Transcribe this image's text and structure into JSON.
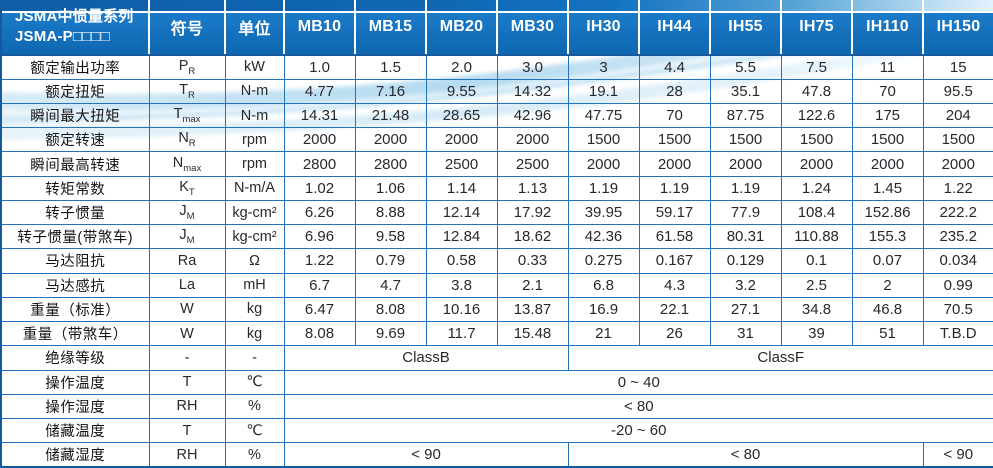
{
  "colors": {
    "header_blue": "#1270bf",
    "border_blue": "#2273b9",
    "wave_blue": "#6cb5e0"
  },
  "table": {
    "header": {
      "title_line1": "JSMA中惯量系列",
      "title_line2": "JSMA-P□□□□",
      "symbol_label": "符号",
      "unit_label": "单位",
      "models": [
        "MB10",
        "MB15",
        "MB20",
        "MB30",
        "IH30",
        "IH44",
        "IH55",
        "IH75",
        "IH110",
        "IH150"
      ]
    },
    "rows": [
      {
        "label": "额定输出功率",
        "symbol": "P",
        "sub": "R",
        "unit": "kW",
        "values": [
          "1.0",
          "1.5",
          "2.0",
          "3.0",
          "3",
          "4.4",
          "5.5",
          "7.5",
          "11",
          "15"
        ]
      },
      {
        "label": "额定扭矩",
        "symbol": "T",
        "sub": "R",
        "unit": "N-m",
        "values": [
          "4.77",
          "7.16",
          "9.55",
          "14.32",
          "19.1",
          "28",
          "35.1",
          "47.8",
          "70",
          "95.5"
        ]
      },
      {
        "label": "瞬间最大扭矩",
        "symbol": "T",
        "sub": "max",
        "unit": "N-m",
        "values": [
          "14.31",
          "21.48",
          "28.65",
          "42.96",
          "47.75",
          "70",
          "87.75",
          "122.6",
          "175",
          "204"
        ]
      },
      {
        "label": "额定转速",
        "symbol": "N",
        "sub": "R",
        "unit": "rpm",
        "values": [
          "2000",
          "2000",
          "2000",
          "2000",
          "1500",
          "1500",
          "1500",
          "1500",
          "1500",
          "1500"
        ]
      },
      {
        "label": "瞬间最高转速",
        "symbol": "N",
        "sub": "max",
        "unit": "rpm",
        "values": [
          "2800",
          "2800",
          "2500",
          "2500",
          "2000",
          "2000",
          "2000",
          "2000",
          "2000",
          "2000"
        ]
      },
      {
        "label": "转矩常数",
        "symbol": "K",
        "sub": "T",
        "unit": "N-m/A",
        "values": [
          "1.02",
          "1.06",
          "1.14",
          "1.13",
          "1.19",
          "1.19",
          "1.19",
          "1.24",
          "1.45",
          "1.22"
        ]
      },
      {
        "label": "转子惯量",
        "symbol": "J",
        "sub": "M",
        "unit": "kg-cm²",
        "values": [
          "6.26",
          "8.88",
          "12.14",
          "17.92",
          "39.95",
          "59.17",
          "77.9",
          "108.4",
          "152.86",
          "222.2"
        ]
      },
      {
        "label": "转子惯量(带煞车)",
        "symbol": "J",
        "sub": "M",
        "unit": "kg-cm²",
        "values": [
          "6.96",
          "9.58",
          "12.84",
          "18.62",
          "42.36",
          "61.58",
          "80.31",
          "110.88",
          "155.3",
          "235.2"
        ]
      },
      {
        "label": "马达阻抗",
        "symbol": "Ra",
        "unit": "Ω",
        "values": [
          "1.22",
          "0.79",
          "0.58",
          "0.33",
          "0.275",
          "0.167",
          "0.129",
          "0.1",
          "0.07",
          "0.034"
        ]
      },
      {
        "label": "马达感抗",
        "symbol": "La",
        "unit": "mH",
        "values": [
          "6.7",
          "4.7",
          "3.8",
          "2.1",
          "6.8",
          "4.3",
          "3.2",
          "2.5",
          "2",
          "0.99"
        ]
      },
      {
        "label": "重量（标准）",
        "symbol": "W",
        "unit": "kg",
        "values": [
          "6.47",
          "8.08",
          "10.16",
          "13.87",
          "16.9",
          "22.1",
          "27.1",
          "34.8",
          "46.8",
          "70.5"
        ]
      },
      {
        "label": "重量（带煞车）",
        "symbol": "W",
        "unit": "kg",
        "values": [
          "8.08",
          "9.69",
          "11.7",
          "15.48",
          "21",
          "26",
          "31",
          "39",
          "51",
          "T.B.D"
        ]
      },
      {
        "label": "绝缘等级",
        "symbol": "-",
        "unit": "-",
        "spans": [
          {
            "text": "ClassB",
            "cols": 4
          },
          {
            "text": "ClassF",
            "cols": 6
          }
        ]
      },
      {
        "label": "操作温度",
        "symbol": "T",
        "unit": "℃",
        "spans": [
          {
            "text": "0 ~ 40",
            "cols": 10
          }
        ]
      },
      {
        "label": "操作湿度",
        "symbol": "RH",
        "unit": "%",
        "spans": [
          {
            "text": "< 80",
            "cols": 10
          }
        ]
      },
      {
        "label": "储藏温度",
        "symbol": "T",
        "unit": "℃",
        "spans": [
          {
            "text": "-20 ~ 60",
            "cols": 10
          }
        ]
      },
      {
        "label": "储藏湿度",
        "symbol": "RH",
        "unit": "%",
        "spans": [
          {
            "text": "< 90",
            "cols": 4
          },
          {
            "text": "< 80",
            "cols": 5
          },
          {
            "text": "< 90",
            "cols": 1
          }
        ]
      }
    ]
  }
}
